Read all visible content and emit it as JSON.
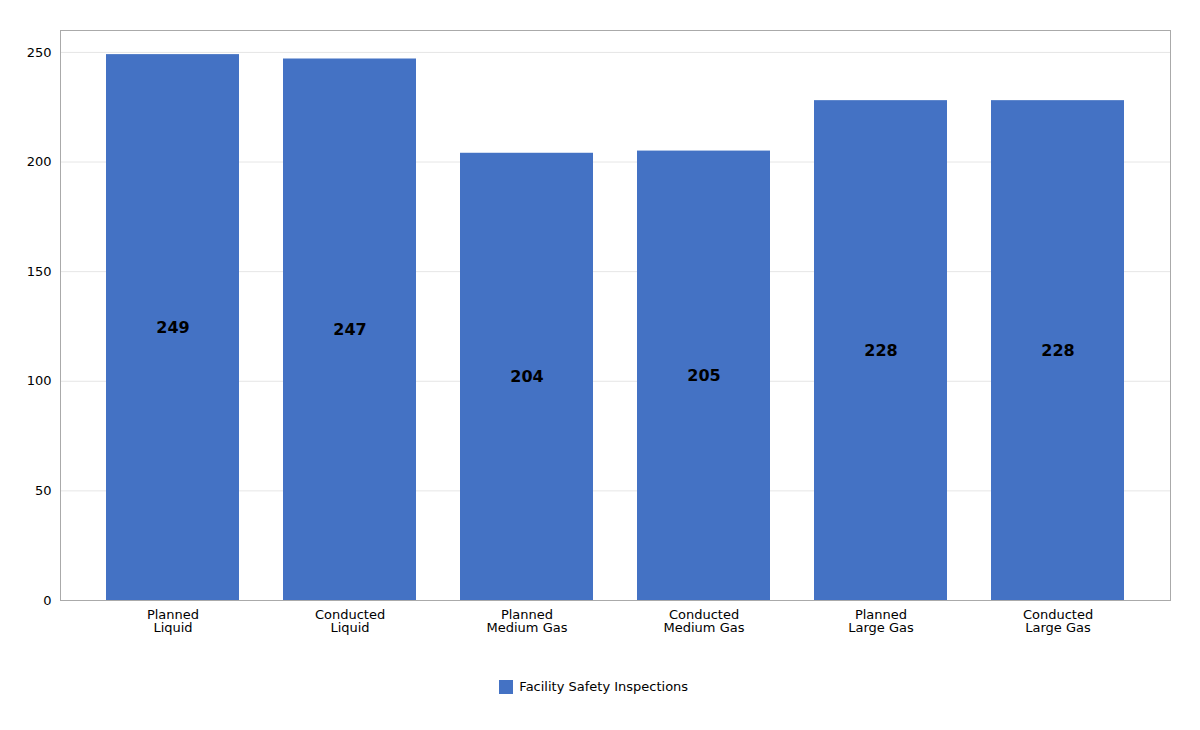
{
  "chart_data": {
    "type": "bar",
    "categories": [
      "Planned\nLiquid",
      "Conducted\nLiquid",
      "Planned\nMedium Gas",
      "Conducted\nMedium Gas",
      "Planned\nLarge Gas",
      "Conducted\nLarge Gas"
    ],
    "series": [
      {
        "name": "Facility Safety Inspections",
        "color": "#4472C4",
        "values": [
          249,
          247,
          204,
          205,
          228,
          228
        ]
      }
    ],
    "ylim": [
      0,
      260
    ],
    "yticks": [
      0,
      50,
      100,
      150,
      200,
      250
    ],
    "grid": true,
    "data_labels": true,
    "legend": "bottom"
  }
}
